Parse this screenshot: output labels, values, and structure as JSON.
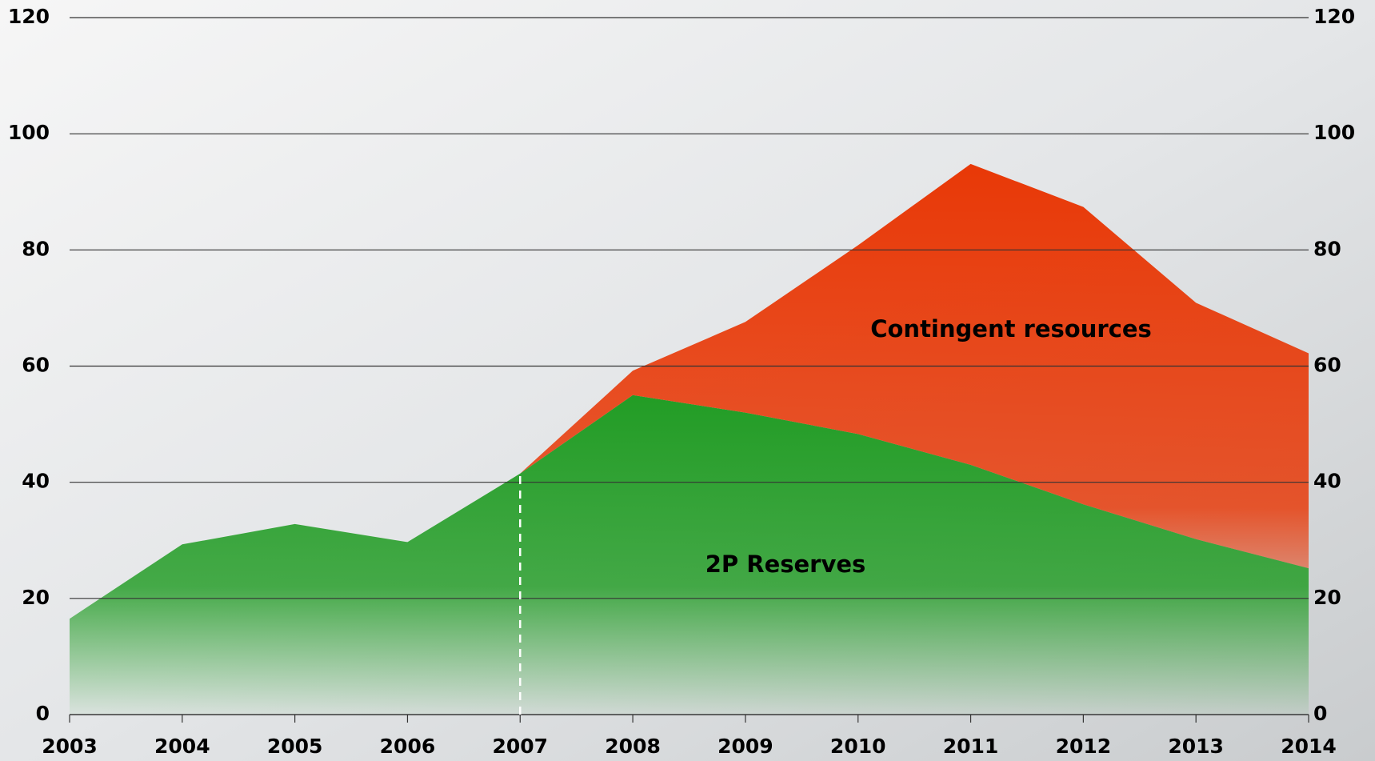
{
  "chart_data": {
    "type": "stacked-area",
    "x": [
      2003,
      2004,
      2005,
      2006,
      2007,
      2008,
      2009,
      2010,
      2011,
      2012,
      2013,
      2014
    ],
    "xlim": [
      2003,
      2014
    ],
    "xticks": [
      2003,
      2004,
      2005,
      2006,
      2007,
      2008,
      2009,
      2010,
      2011,
      2012,
      2013,
      2014
    ],
    "ylim": [
      0,
      120
    ],
    "yticks": [
      0,
      20,
      40,
      60,
      80,
      100,
      120
    ],
    "y2lim": [
      0,
      120
    ],
    "y2ticks": [
      0,
      20,
      40,
      60,
      80,
      100,
      120
    ],
    "grid": true,
    "series": [
      {
        "name": "2P Reserves",
        "color": "#1c9a1f",
        "values": [
          16.5,
          29.3,
          32.8,
          29.7,
          41.5,
          55,
          52,
          48.3,
          43,
          36.2,
          30.2,
          25.2
        ]
      },
      {
        "name": "Contingent resources",
        "color": "#e83300",
        "values": [
          null,
          null,
          null,
          null,
          0,
          4.2,
          15.6,
          32.5,
          51.8,
          51.2,
          40.7,
          37
        ]
      }
    ]
  }
}
